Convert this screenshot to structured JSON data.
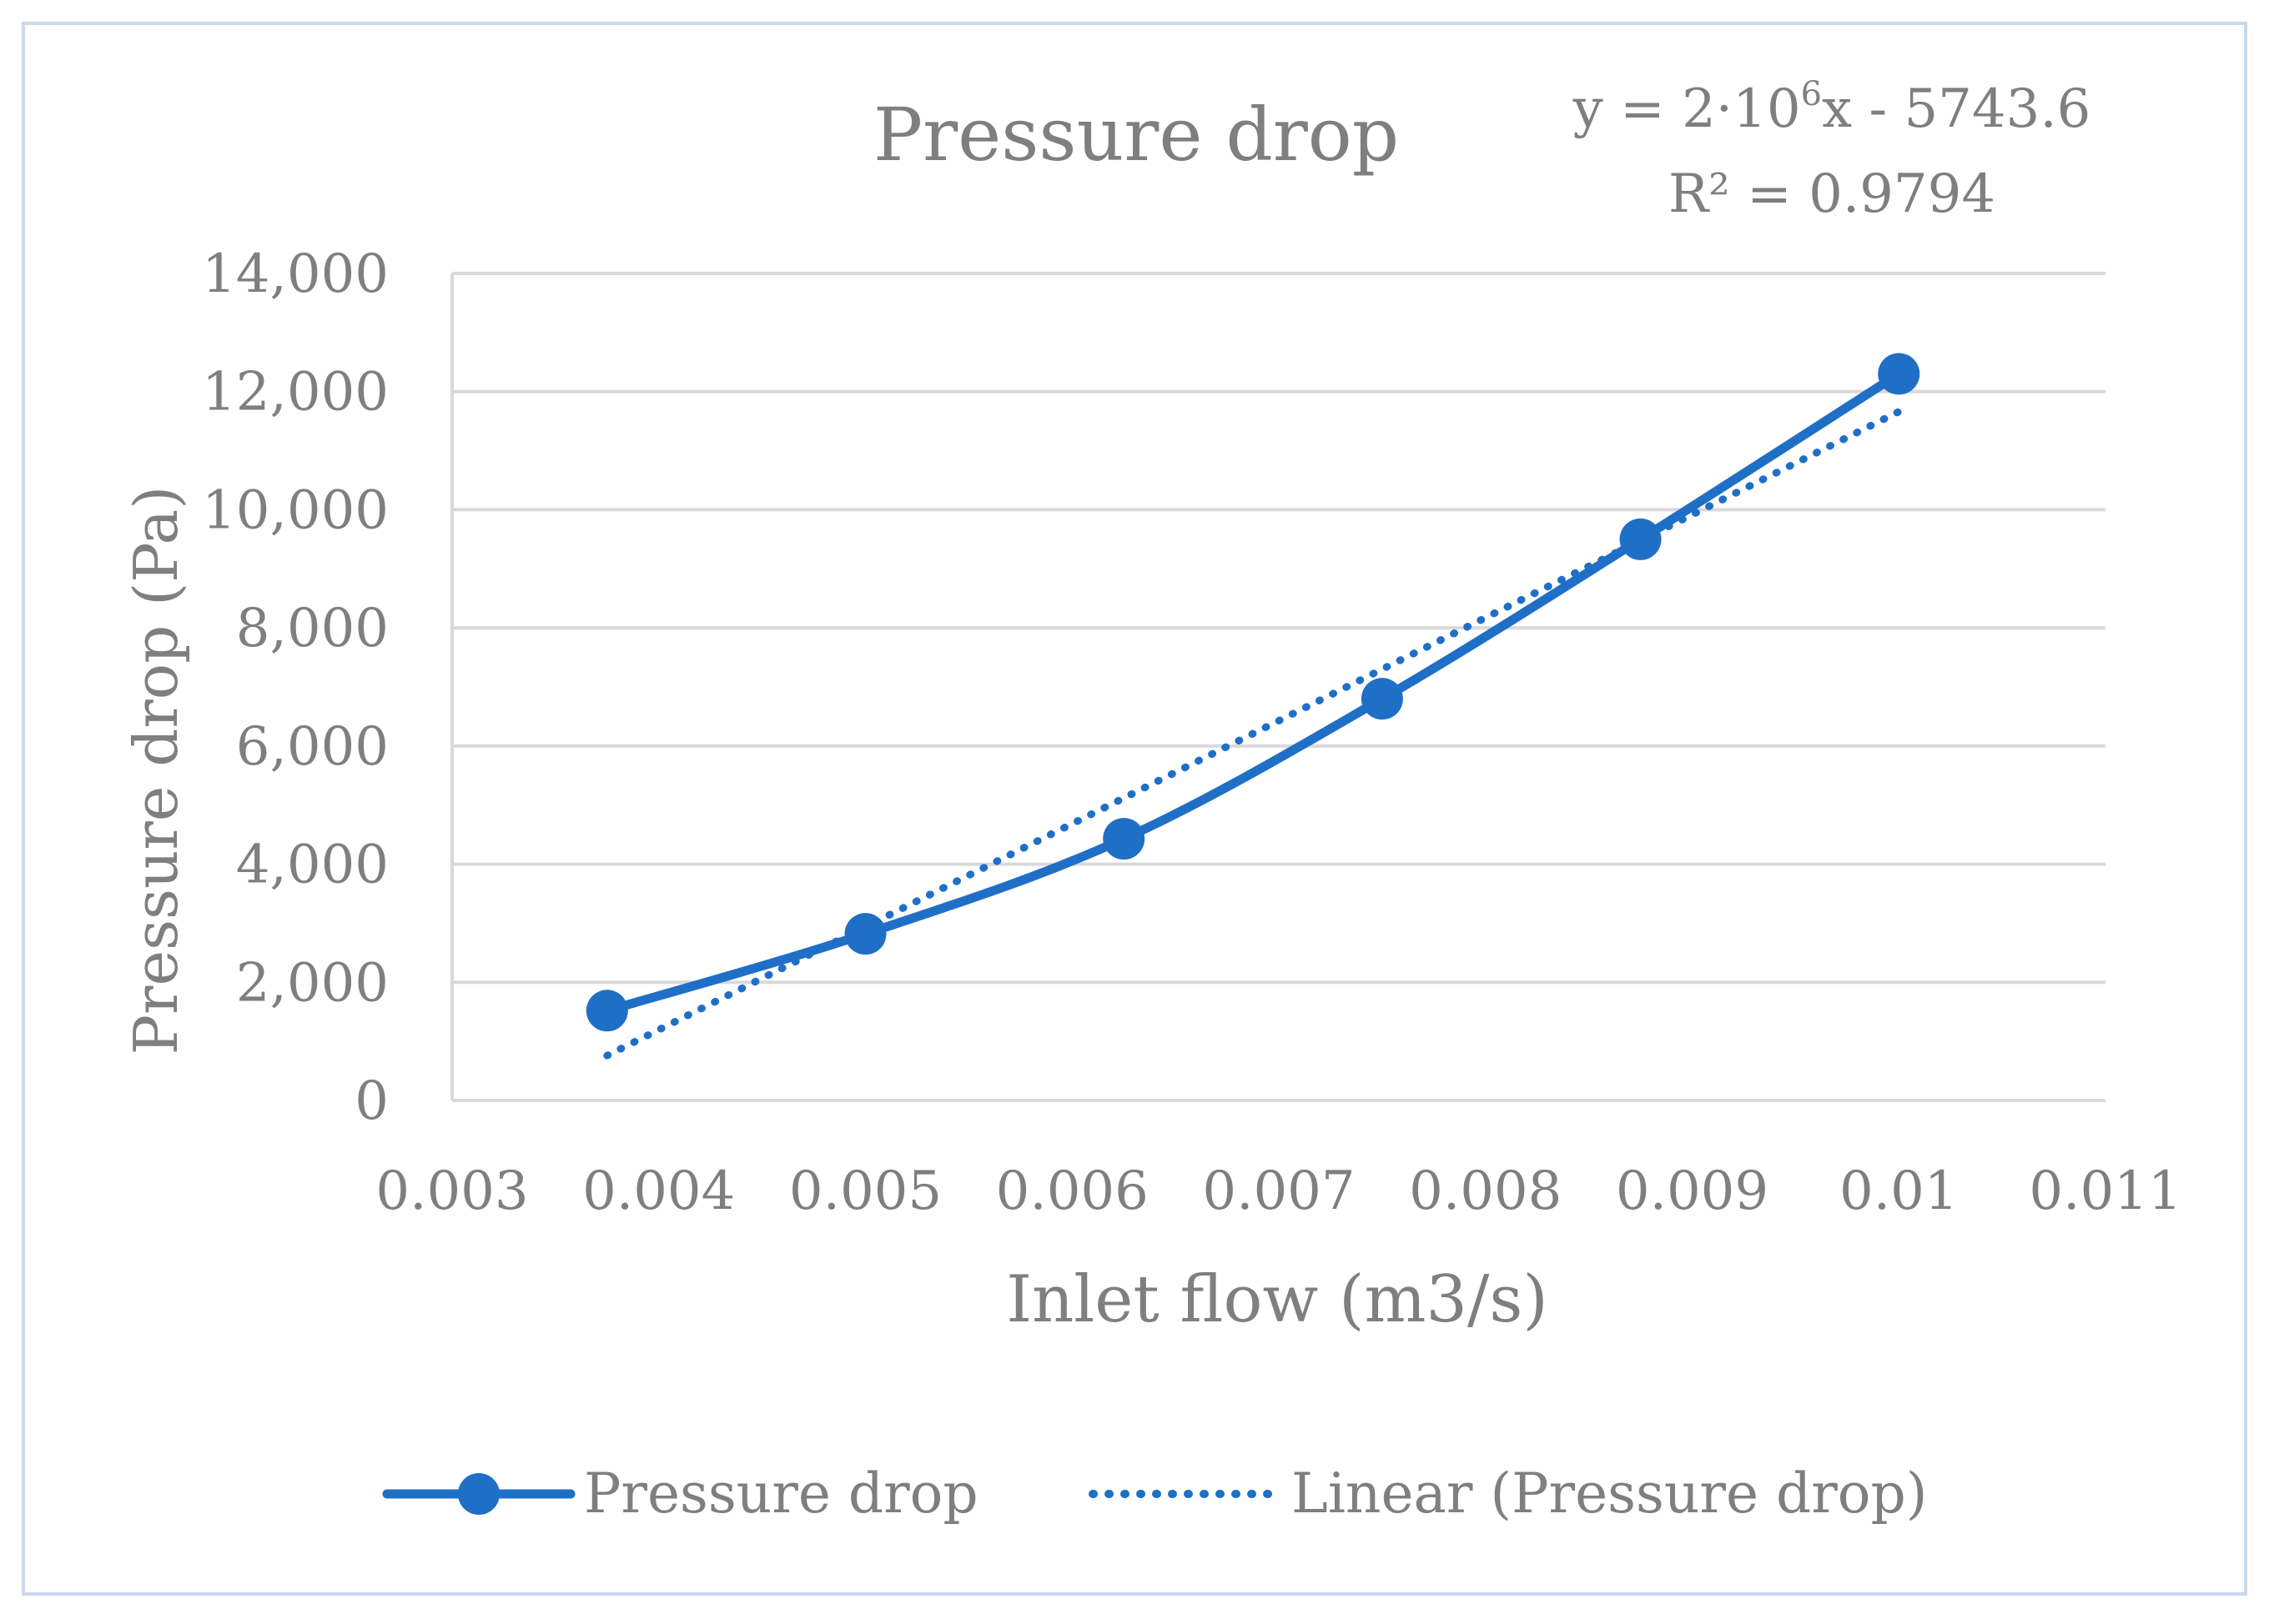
{
  "chart_data": {
    "type": "line",
    "title": "Pressure drop",
    "xlabel": "Inlet flow (m3/s)",
    "ylabel": "Pressure drop (Pa)",
    "xlim": [
      0.003,
      0.011
    ],
    "ylim": [
      0,
      14000
    ],
    "x_ticks": [
      "0.003",
      "0.004",
      "0.005",
      "0.006",
      "0.007",
      "0.008",
      "0.009",
      "0.01",
      "0.011"
    ],
    "y_ticks": [
      "0",
      "2,000",
      "4,000",
      "6,000",
      "8,000",
      "10,000",
      "12,000",
      "14,000"
    ],
    "grid": "horizontal",
    "legend_position": "bottom",
    "series": [
      {
        "name": "Pressure drop",
        "style": "solid-with-markers",
        "color": "#1f6fc7",
        "x": [
          0.00375,
          0.005,
          0.00625,
          0.0075,
          0.00875,
          0.01
        ],
        "y": [
          1520,
          2820,
          4430,
          6800,
          9500,
          12300
        ]
      },
      {
        "name": "Linear (Pressure drop)",
        "style": "dotted",
        "color": "#1f6fc7",
        "x": [
          0.00375,
          0.01
        ],
        "y": [
          760,
          11660
        ]
      }
    ],
    "trendline_equation": {
      "line1_prefix": "y = 2·10",
      "line1_exponent": "6",
      "line1_suffix": "x - 5743.6",
      "line2": "R² = 0.9794"
    }
  }
}
